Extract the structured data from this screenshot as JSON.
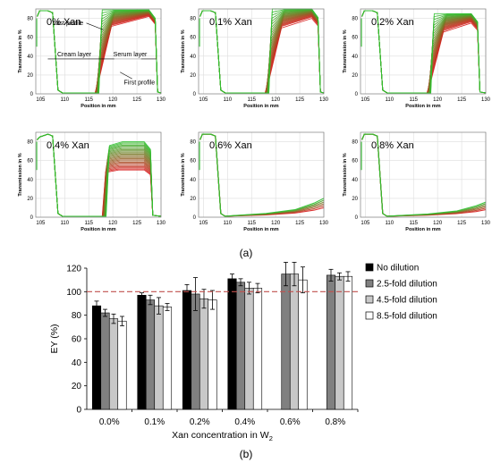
{
  "figure": {
    "label_a": "(a)",
    "label_b": "(b)"
  },
  "chart_data": [
    {
      "type": "line",
      "title": "0% Xan",
      "xlabel": "Position in mm",
      "ylabel": "Transmission in %",
      "x_ticks": [
        "105",
        "110",
        "115",
        "120",
        "125",
        "130"
      ],
      "y_ticks": [
        "0",
        "20",
        "40",
        "60",
        "80"
      ],
      "xlim": [
        104,
        130
      ],
      "ylim": [
        0,
        90
      ],
      "annotations": [
        "Last profile",
        "Cream layer",
        "Serum layer",
        "First profile"
      ],
      "grid": true,
      "colors": [
        "#2fc02f",
        "#d81f1f"
      ]
    },
    {
      "type": "line",
      "title": "0.1% Xan",
      "xlabel": "Position in mm",
      "ylabel": "Transmission in %",
      "x_ticks": [
        "105",
        "110",
        "115",
        "120",
        "125",
        "130"
      ],
      "y_ticks": [
        "0",
        "20",
        "40",
        "60",
        "80"
      ],
      "xlim": [
        104,
        130
      ],
      "ylim": [
        0,
        90
      ],
      "grid": true
    },
    {
      "type": "line",
      "title": "0.2% Xan",
      "xlabel": "Position in mm",
      "ylabel": "Transmission in %",
      "x_ticks": [
        "105",
        "110",
        "115",
        "120",
        "125",
        "130"
      ],
      "y_ticks": [
        "0",
        "20",
        "40",
        "60",
        "80"
      ],
      "xlim": [
        104,
        130
      ],
      "ylim": [
        0,
        90
      ],
      "grid": true
    },
    {
      "type": "line",
      "title": "0.4% Xan",
      "xlabel": "Position in mm",
      "ylabel": "Transmission in %",
      "x_ticks": [
        "105",
        "110",
        "115",
        "120",
        "125",
        "130"
      ],
      "y_ticks": [
        "0",
        "20",
        "40",
        "60",
        "80"
      ],
      "xlim": [
        104,
        130
      ],
      "ylim": [
        0,
        90
      ],
      "grid": true
    },
    {
      "type": "line",
      "title": "0.6% Xan",
      "xlabel": "Position in mm",
      "ylabel": "Transmission in %",
      "x_ticks": [
        "105",
        "110",
        "115",
        "120",
        "125",
        "130"
      ],
      "y_ticks": [
        "0",
        "20",
        "40",
        "60",
        "80"
      ],
      "xlim": [
        104,
        130
      ],
      "ylim": [
        0,
        90
      ],
      "grid": true
    },
    {
      "type": "line",
      "title": "0.8% Xan",
      "xlabel": "Position in mm",
      "ylabel": "Transmission in %",
      "x_ticks": [
        "105",
        "110",
        "115",
        "120",
        "125",
        "130"
      ],
      "y_ticks": [
        "0",
        "20",
        "40",
        "60",
        "80"
      ],
      "xlim": [
        104,
        130
      ],
      "ylim": [
        0,
        90
      ],
      "grid": true
    },
    {
      "type": "bar",
      "categories": [
        "0.0%",
        "0.1%",
        "0.2%",
        "0.4%",
        "0.6%",
        "0.8%"
      ],
      "xlabel": "Xan concentration in W",
      "xlabel_sub": "2",
      "ylabel": "EY (%)",
      "ylim": [
        0,
        120
      ],
      "y_ticks": [
        "0",
        "20",
        "40",
        "60",
        "80",
        "100",
        "120"
      ],
      "reference_line": 100,
      "reference_color": "#c0504d",
      "legend_position": "right",
      "series": [
        {
          "name": "No dilution",
          "color": "#000000",
          "values": [
            88,
            97,
            101,
            111,
            null,
            null
          ],
          "errors": [
            4,
            2,
            5,
            4,
            null,
            null
          ]
        },
        {
          "name": "2.5-fold dilution",
          "color": "#808080",
          "values": [
            82,
            93,
            98,
            108,
            115,
            114
          ],
          "errors": [
            3,
            4,
            14,
            3,
            10,
            5
          ]
        },
        {
          "name": "4.5-fold dilution",
          "color": "#c8c8c8",
          "values": [
            77,
            88,
            94,
            103,
            115,
            113
          ],
          "errors": [
            4,
            7,
            8,
            5,
            10,
            3
          ]
        },
        {
          "name": "8.5-fold dilution",
          "color": "#ffffff",
          "values": [
            75,
            87,
            93,
            103,
            110,
            113
          ],
          "errors": [
            4,
            3,
            8,
            4,
            11,
            4
          ]
        }
      ]
    }
  ]
}
